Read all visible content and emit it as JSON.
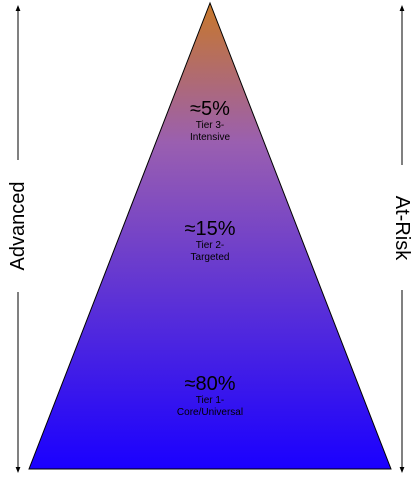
{
  "colors": {
    "apex": "#c8782a",
    "middle": "#9a5fb0",
    "base": "#1a00ff",
    "arrow": "#000000"
  },
  "pyramid": {
    "tiers": [
      {
        "percent": "≈5%",
        "name_line1": "Tier 3-",
        "name_line2": "Intensive"
      },
      {
        "percent": "≈15%",
        "name_line1": "Tier 2-",
        "name_line2": "Targeted"
      },
      {
        "percent": "≈80%",
        "name_line1": "Tier 1-",
        "name_line2": "Core/Universal"
      }
    ]
  },
  "side_labels": {
    "left": "Advanced",
    "right": "At-Risk"
  }
}
